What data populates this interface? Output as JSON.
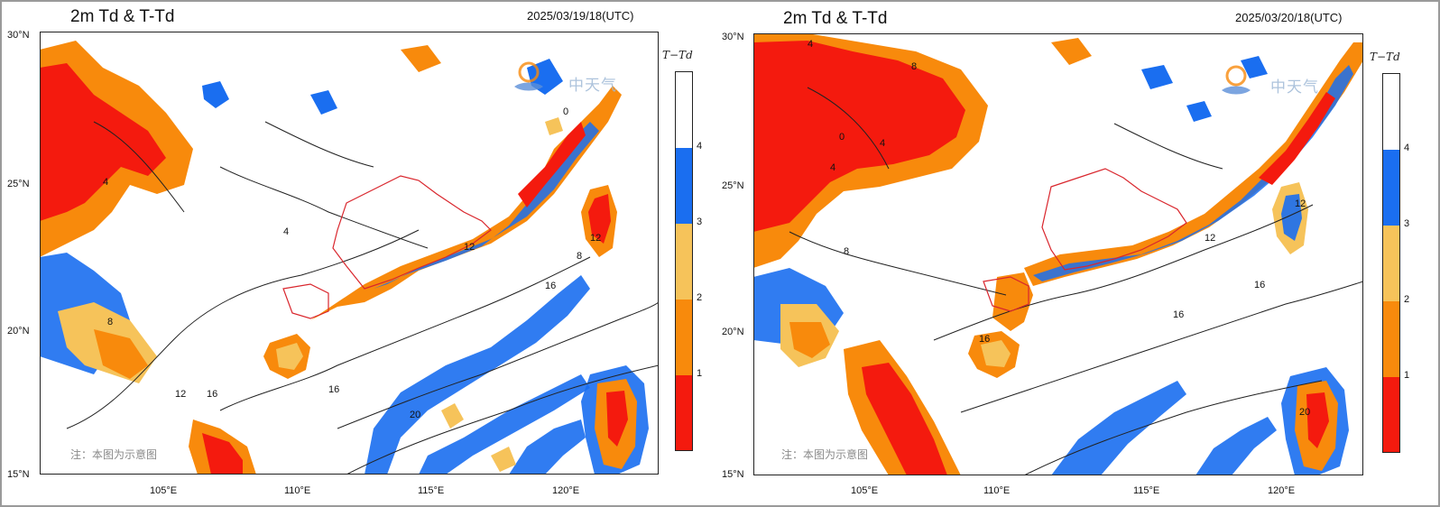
{
  "panels": [
    {
      "title": "2m Td & T-Td",
      "time": "2025/03/19/18(UTC)",
      "lat_labels": [
        "30°N",
        "25°N",
        "20°N",
        "15°N"
      ],
      "lon_labels": [
        "105°E",
        "110°E",
        "115°E",
        "120°E"
      ],
      "contour_labels": [
        "0",
        "4",
        "4",
        "8",
        "12",
        "12",
        "12",
        "16",
        "16",
        "16",
        "20",
        "8"
      ],
      "note": "注：本图为示意图",
      "watermark": "中天气"
    },
    {
      "title": "2m Td & T-Td",
      "time": "2025/03/20/18(UTC)",
      "lat_labels": [
        "30°N",
        "25°N",
        "20°N",
        "15°N"
      ],
      "lon_labels": [
        "105°E",
        "110°E",
        "115°E",
        "120°E"
      ],
      "contour_labels": [
        "4",
        "8",
        "0",
        "4",
        "4",
        "8",
        "12",
        "12",
        "16",
        "16",
        "16",
        "20"
      ],
      "note": "注：本图为示意图",
      "watermark": "中天气"
    }
  ],
  "colorbar": {
    "title": "T−Td",
    "ticks": [
      "1",
      "2",
      "3",
      "4"
    ],
    "levels": [
      {
        "range": "<1",
        "color": "#f41a0e"
      },
      {
        "range": "1-2",
        "color": "#f88a0c"
      },
      {
        "range": "2-3",
        "color": "#f6c35a"
      },
      {
        "range": "3-4",
        "color": "#1a6ef0"
      },
      {
        "range": ">4",
        "color": "#ffffff"
      }
    ]
  },
  "map": {
    "extent": {
      "lon": [
        101,
        124
      ],
      "lat": [
        15,
        30.5
      ]
    },
    "ocean_color": "#ffffff",
    "land_contour_color": "#222222",
    "province_border_color": "#d9262d"
  }
}
